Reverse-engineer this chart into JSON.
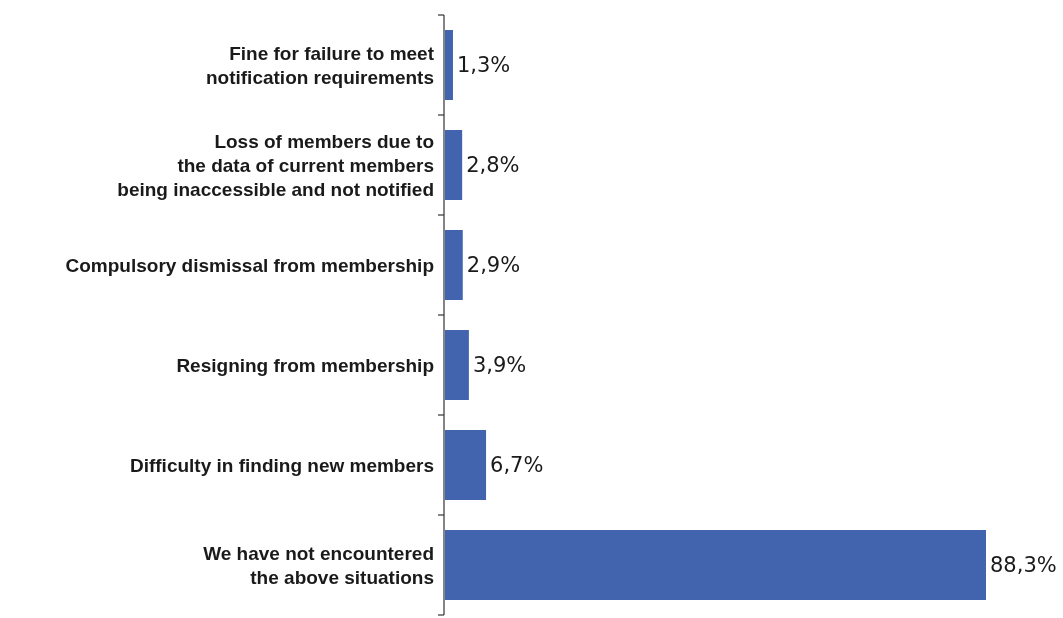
{
  "chart_data": {
    "type": "bar",
    "orientation": "horizontal",
    "categories": [
      "Fine for failure to meet\nnotification requirements",
      "Loss of members due to\nthe data of current members\nbeing inaccessible and not notified",
      "Compulsory dismissal from membership",
      "Resigning from membership",
      "Difficulty in finding new members",
      "We have not encountered\nthe above situations"
    ],
    "values": [
      1.3,
      2.8,
      2.9,
      3.9,
      6.7,
      88.3
    ],
    "value_labels": [
      "1,3%",
      "2,8%",
      "2,9%",
      "3,9%",
      "6,7%",
      "88,3%"
    ],
    "color": "#4264ae"
  }
}
